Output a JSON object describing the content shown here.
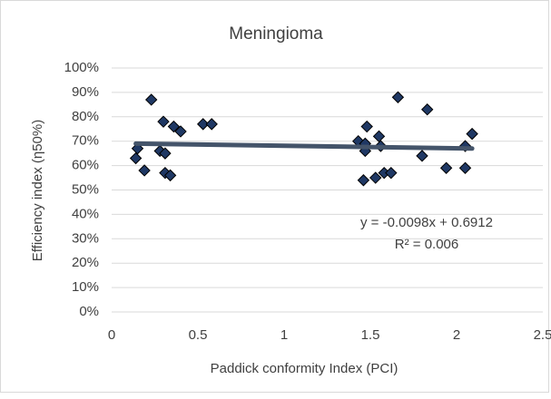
{
  "chart_data": {
    "type": "scatter",
    "title": "Meningioma",
    "x_label": "Paddick conformity Index (PCI)",
    "y_label": "Efficiency index (η50%)",
    "annotations": [
      "y = -0.0098x + 0.6912",
      "R² = 0.006"
    ],
    "xlim": [
      0,
      2.5
    ],
    "xticks": [
      0,
      0.5,
      1,
      1.5,
      2,
      2.5
    ],
    "ylim": [
      0,
      1
    ],
    "yticks": [
      {
        "value": 0,
        "label": "0%"
      },
      {
        "value": 0.1,
        "label": "10%"
      },
      {
        "value": 0.2,
        "label": "20%"
      },
      {
        "value": 0.3,
        "label": "30%"
      },
      {
        "value": 0.4,
        "label": "40%"
      },
      {
        "value": 0.5,
        "label": "50%"
      },
      {
        "value": 0.6,
        "label": "60%"
      },
      {
        "value": 0.7,
        "label": "70%"
      },
      {
        "value": 0.8,
        "label": "80%"
      },
      {
        "value": 0.9,
        "label": "90%"
      },
      {
        "value": 1,
        "label": "100%"
      }
    ],
    "grid": true,
    "series": [
      {
        "color": "#1f3864",
        "x": [
          0.15,
          0.14,
          0.19,
          0.23,
          0.28,
          0.3,
          0.31,
          0.31,
          0.34,
          0.36,
          0.4,
          0.53,
          0.58,
          1.43,
          1.47,
          1.47,
          1.46,
          1.48,
          1.53,
          1.55,
          1.56,
          1.58,
          1.62,
          1.66,
          1.8,
          1.83,
          1.94,
          2.05,
          2.05,
          2.09
        ],
        "values": [
          0.67,
          0.63,
          0.58,
          0.87,
          0.66,
          0.78,
          0.65,
          0.57,
          0.56,
          0.76,
          0.74,
          0.77,
          0.77,
          0.7,
          0.69,
          0.66,
          0.54,
          0.76,
          0.55,
          0.72,
          0.68,
          0.57,
          0.57,
          0.88,
          0.64,
          0.83,
          0.59,
          0.68,
          0.59,
          0.73
        ]
      }
    ],
    "trendline": {
      "color": "#44546a",
      "x": [
        0.14,
        2.09
      ],
      "values": [
        0.69,
        0.67
      ]
    }
  }
}
